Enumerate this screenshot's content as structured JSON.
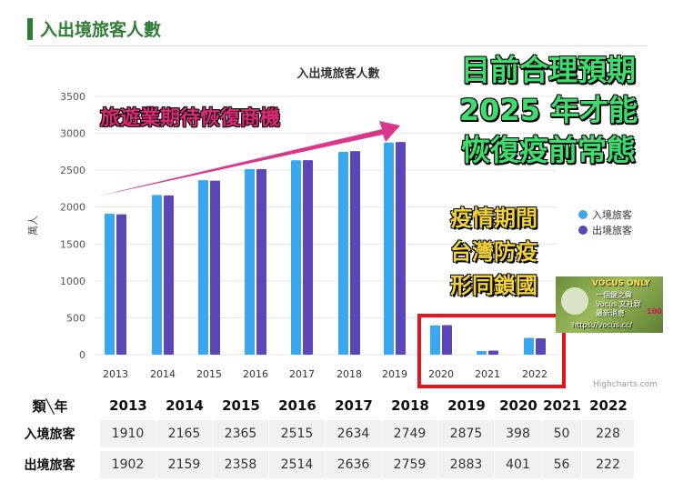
{
  "header": {
    "title": "入出境旅客人數"
  },
  "chart_data": {
    "type": "bar",
    "title": "入出境旅客人數",
    "ylabel": "萬人",
    "xlabel": "",
    "ylim": [
      0,
      3500
    ],
    "yticks": [
      0,
      500,
      1000,
      1500,
      2000,
      2500,
      3000,
      3500
    ],
    "categories": [
      "2013",
      "2014",
      "2015",
      "2016",
      "2017",
      "2018",
      "2019",
      "2020",
      "2021",
      "2022"
    ],
    "series": [
      {
        "name": "入境旅客",
        "color": "#3aa8f0",
        "values": [
          1910,
          2165,
          2365,
          2515,
          2634,
          2749,
          2875,
          398,
          50,
          228
        ]
      },
      {
        "name": "出境旅客",
        "color": "#5b47b8",
        "values": [
          1902,
          2159,
          2358,
          2514,
          2636,
          2759,
          2883,
          401,
          56,
          222
        ]
      }
    ],
    "legend_position": "right",
    "credit": "Highcharts.com"
  },
  "annotations": {
    "headline": [
      "目前合理預期",
      "2025 年才能",
      "恢復疫前常態"
    ],
    "promo": "旅遊業期待恢復商機",
    "pandemic": [
      "疫情期間",
      "台灣防疫",
      "形同鎖國"
    ],
    "highlight_color": "#e8141c",
    "arrow_color": "#d9388a"
  },
  "vocus": {
    "title": "VOCUS ONLY",
    "lines": [
      "一個鍵之聲",
      "Vocus 文社群",
      "最新消息"
    ],
    "badge": "100",
    "url": "https://vocus.cc/"
  },
  "table": {
    "corner": "類╲年",
    "years": [
      "2013",
      "2014",
      "2015",
      "2016",
      "2017",
      "2018",
      "2019",
      "2020",
      "2021",
      "2022"
    ],
    "rows": [
      {
        "label": "入境旅客",
        "values": [
          "1910",
          "2165",
          "2365",
          "2515",
          "2634",
          "2749",
          "2875",
          "398",
          "50",
          "228"
        ]
      },
      {
        "label": "出境旅客",
        "values": [
          "1902",
          "2159",
          "2358",
          "2514",
          "2636",
          "2759",
          "2883",
          "401",
          "56",
          "222"
        ]
      }
    ]
  }
}
